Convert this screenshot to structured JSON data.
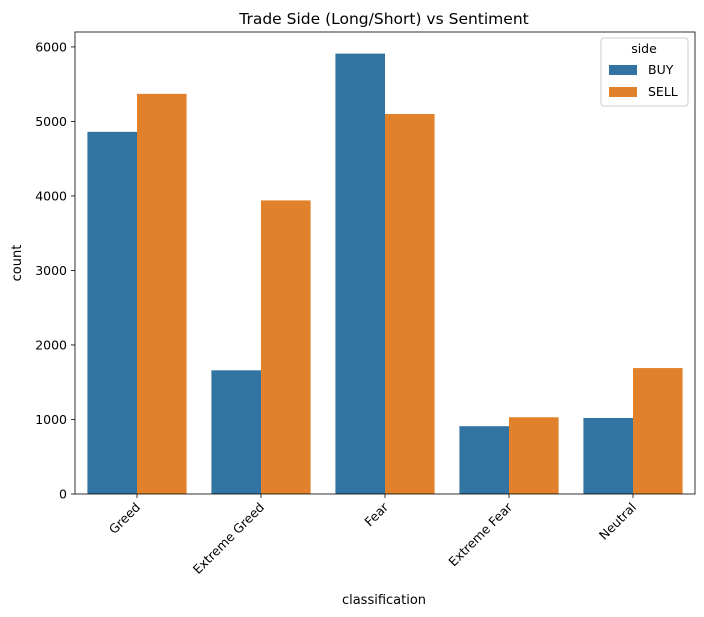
{
  "chart_data": {
    "type": "bar",
    "title": "Trade Side (Long/Short) vs Sentiment",
    "xlabel": "classification",
    "ylabel": "count",
    "categories": [
      "Greed",
      "Extreme Greed",
      "Fear",
      "Extreme Fear",
      "Neutral"
    ],
    "series": [
      {
        "name": "BUY",
        "values": [
          4860,
          1660,
          5910,
          910,
          1020
        ],
        "color": "#3274a1"
      },
      {
        "name": "SELL",
        "values": [
          5370,
          3940,
          5100,
          1030,
          1690
        ],
        "color": "#e1812c"
      }
    ],
    "ylim": [
      0,
      6200
    ],
    "yticks": [
      0,
      1000,
      2000,
      3000,
      4000,
      5000,
      6000
    ],
    "xtick_rotation": 45,
    "grid": false,
    "legend": {
      "title": "side",
      "placement": "top-right"
    }
  }
}
